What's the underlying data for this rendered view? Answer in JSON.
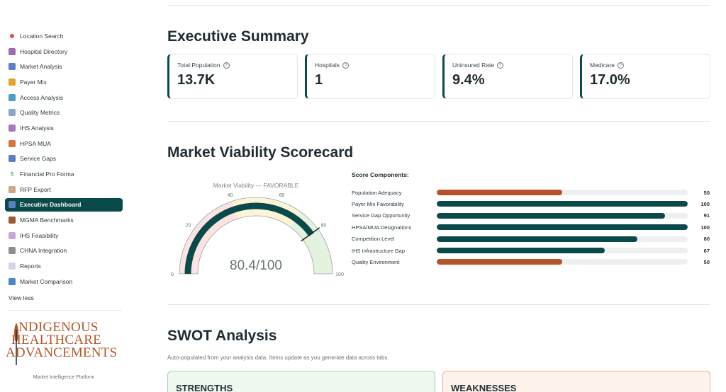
{
  "sidebar": {
    "items": [
      {
        "label": "Location Search",
        "icon": "pin-icon",
        "color": "#e05561",
        "glyph": "●"
      },
      {
        "label": "Hospital Directory",
        "icon": "hospital-icon",
        "color": "#9e6bb0",
        "glyph": ""
      },
      {
        "label": "Market Analysis",
        "icon": "bar-chart-icon",
        "color": "#5b7fc0",
        "glyph": ""
      },
      {
        "label": "Payer Mix",
        "icon": "money-bag-icon",
        "color": "#e5a02a",
        "glyph": ""
      },
      {
        "label": "Access Analysis",
        "icon": "map-icon",
        "color": "#4e9dc9",
        "glyph": ""
      },
      {
        "label": "Quality Metrics",
        "icon": "trend-up-icon",
        "color": "#8aa7c9",
        "glyph": ""
      },
      {
        "label": "IHS Analysis",
        "icon": "building-icon",
        "color": "#a47bbf",
        "glyph": ""
      },
      {
        "label": "HPSA MUA",
        "icon": "map-grid-icon",
        "color": "#d9743e",
        "glyph": ""
      },
      {
        "label": "Service Gaps",
        "icon": "bar-chart-icon",
        "color": "#5b7fc0",
        "glyph": ""
      },
      {
        "label": "Financial Pro Forma",
        "icon": "dollar-icon",
        "color": "#2f9a55",
        "glyph": "$"
      },
      {
        "label": "RFP Export",
        "icon": "document-icon",
        "color": "#c9a889",
        "glyph": ""
      },
      {
        "label": "Executive Dashboard",
        "icon": "dashboard-icon",
        "color": "#5b7fc0",
        "glyph": "",
        "active": true
      },
      {
        "label": "MGMA Benchmarks",
        "icon": "briefcase-icon",
        "color": "#9c5a33",
        "glyph": ""
      },
      {
        "label": "IHS Feasibility",
        "icon": "memo-icon",
        "color": "#c7a7d8",
        "glyph": ""
      },
      {
        "label": "CHNA Integration",
        "icon": "institution-icon",
        "color": "#8a8f94",
        "glyph": ""
      },
      {
        "label": "Reports",
        "icon": "report-icon",
        "color": "#d7d2e6",
        "glyph": ""
      },
      {
        "label": "Market Comparison",
        "icon": "compare-icon",
        "color": "#4e86c9",
        "glyph": ""
      }
    ],
    "view_less": "View less",
    "logo_lines": [
      "NDIGENOUS",
      "HEALTHCARE",
      "ADVANCEMENTS"
    ],
    "tagline": "Market Intelligence Platform"
  },
  "executive_summary": {
    "title": "Executive Summary",
    "metrics": [
      {
        "label": "Total Population",
        "value": "13.7K"
      },
      {
        "label": "Hospitals",
        "value": "1"
      },
      {
        "label": "Uninsured Rate",
        "value": "9.4%"
      },
      {
        "label": "Medicare",
        "value": "17.0%"
      }
    ]
  },
  "scorecard": {
    "title": "Market Viability Scorecard",
    "gauge": {
      "title": "Market Viability — FAVORABLE",
      "value": 80.4,
      "display": "80.4/100",
      "min": 0,
      "max": 100,
      "ticks": [
        "0",
        "20",
        "40",
        "60",
        "80",
        "100"
      ],
      "threshold": 80,
      "bands": [
        {
          "from": 0,
          "to": 40,
          "color": "#fbe3e1"
        },
        {
          "from": 40,
          "to": 70,
          "color": "#fcf4d6"
        },
        {
          "from": 70,
          "to": 100,
          "color": "#e3f3e0"
        }
      ],
      "bar_color": "#0b4a4a"
    },
    "components_title": "Score Components:",
    "components": [
      {
        "name": "Population Adequacy",
        "value": 50,
        "color": "#b5532b"
      },
      {
        "name": "Payer Mix Favorability",
        "value": 100,
        "color": "#0b4a4a"
      },
      {
        "name": "Service Gap Opportunity",
        "value": 91,
        "color": "#0b4a4a"
      },
      {
        "name": "HPSA/MUA Designations",
        "value": 100,
        "color": "#0b4a4a"
      },
      {
        "name": "Competition Level",
        "value": 80,
        "color": "#0b4a4a"
      },
      {
        "name": "IHS Infrastructure Gap",
        "value": 67,
        "color": "#0b4a4a"
      },
      {
        "name": "Quality Environment",
        "value": 50,
        "color": "#b5532b"
      }
    ]
  },
  "swot": {
    "title": "SWOT Analysis",
    "subtitle": "Auto-populated from your analysis data. Items update as you generate data across tabs.",
    "strengths": "STRENGTHS",
    "weaknesses": "WEAKNESSES"
  }
}
